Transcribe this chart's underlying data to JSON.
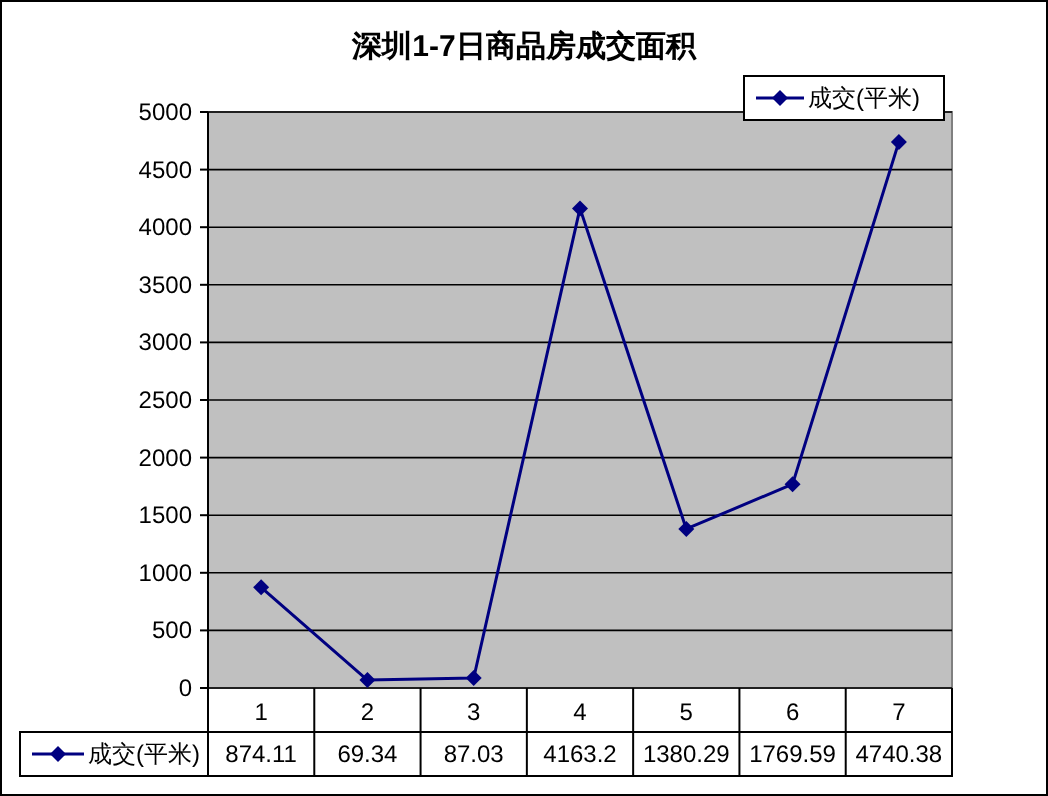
{
  "chart_data": {
    "type": "line",
    "title": "深圳1-7日商品房成交面积",
    "categories": [
      "1",
      "2",
      "3",
      "4",
      "5",
      "6",
      "7"
    ],
    "series": [
      {
        "name": "成交(平米)",
        "color": "#000080",
        "values": [
          874.11,
          69.34,
          87.03,
          4163.2,
          1380.29,
          1769.59,
          4740.38
        ]
      }
    ],
    "ylim": [
      0,
      5000
    ],
    "yticks": [
      0,
      500,
      1000,
      1500,
      2000,
      2500,
      3000,
      3500,
      4000,
      4500,
      5000
    ],
    "grid": "y",
    "legend": "top right",
    "marker": "diamond",
    "line_style": "solid",
    "data_labels": true
  }
}
